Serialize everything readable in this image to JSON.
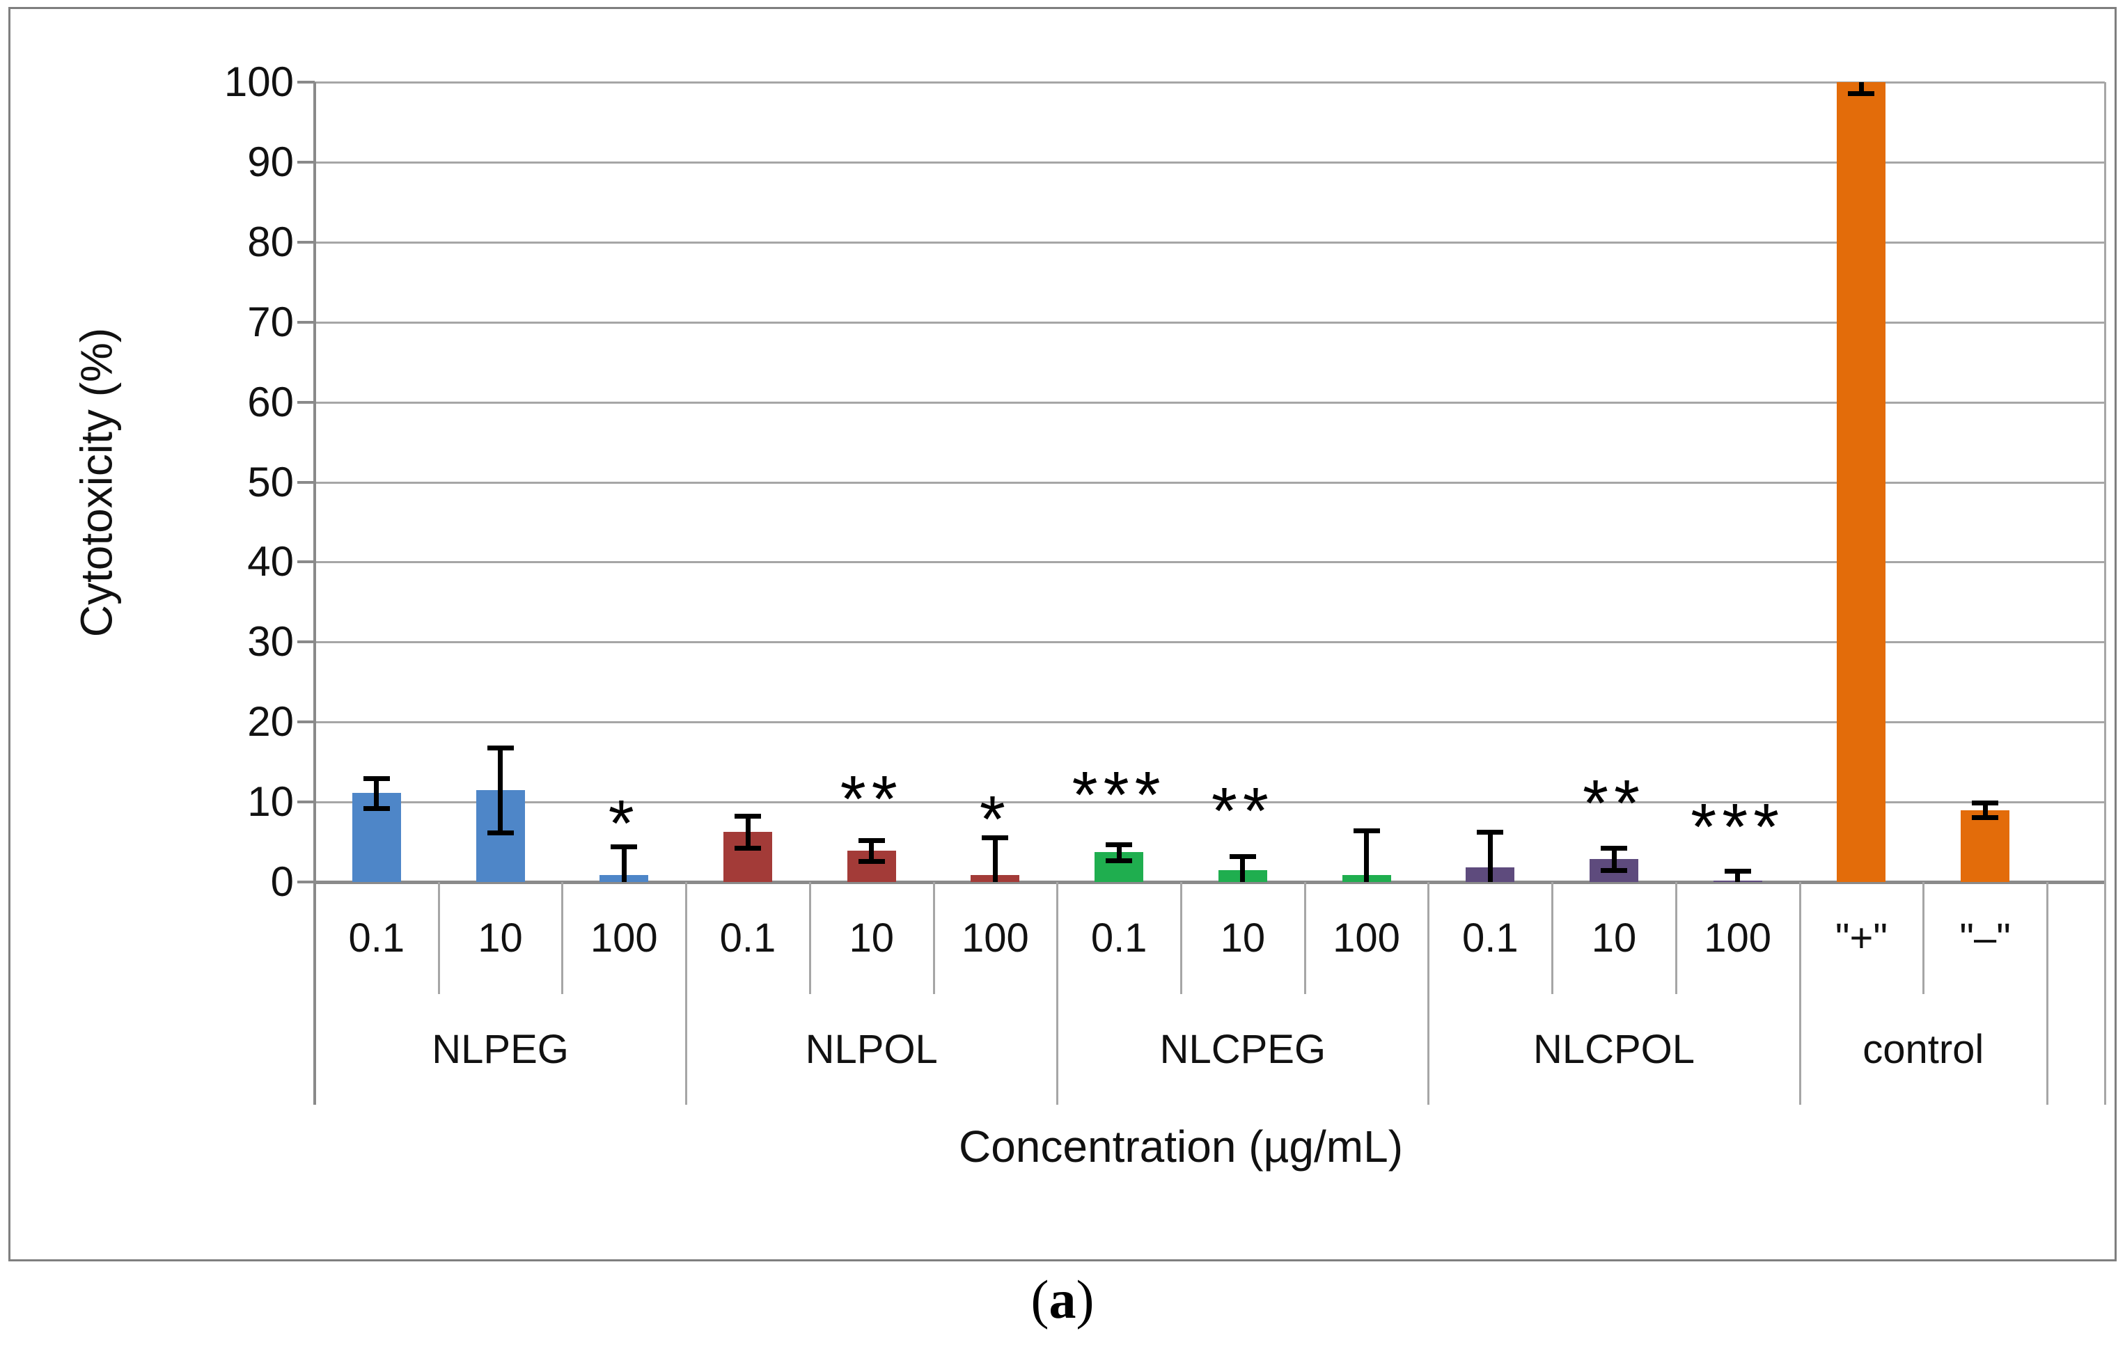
{
  "figure": {
    "caption": {
      "open": "(",
      "letter": "a",
      "close": ")"
    }
  },
  "chart_data": {
    "type": "bar",
    "title": "",
    "xlabel": "Concentration (µg/mL)",
    "ylabel": "Cytotoxicity (%)",
    "ylim": [
      0,
      100
    ],
    "yticks": [
      0,
      10,
      20,
      30,
      40,
      50,
      60,
      70,
      80,
      90,
      100
    ],
    "grid": true,
    "legend": "none",
    "colors": {
      "grid": "#a6a6a6",
      "axis": "#8a8a8a",
      "figure_border": "#7f7f7f",
      "error_bar": "#000000",
      "text": "#111111"
    },
    "significance_note": "asterisks mark statistical significance above bars",
    "groups": [
      {
        "name": "NLPEG",
        "color": "#4e86c8",
        "bars": [
          {
            "label": "0.1",
            "value": 11.1,
            "err": 1.9,
            "sig": "",
            "sig_y": 0
          },
          {
            "label": "10",
            "value": 11.5,
            "err": 5.3,
            "sig": "",
            "sig_y": 0
          },
          {
            "label": "100",
            "value": 0.9,
            "err": 3.5,
            "sig": "*",
            "sig_y": 9
          }
        ]
      },
      {
        "name": "NLPOL",
        "color": "#a33b38",
        "bars": [
          {
            "label": "0.1",
            "value": 6.3,
            "err": 2.0,
            "sig": "",
            "sig_y": 0
          },
          {
            "label": "10",
            "value": 3.9,
            "err": 1.3,
            "sig": "**",
            "sig_y": 12
          },
          {
            "label": "100",
            "value": 0.9,
            "err": 4.7,
            "sig": "*",
            "sig_y": 9.5
          }
        ]
      },
      {
        "name": "NLCPEG",
        "color": "#1fae4f",
        "bars": [
          {
            "label": "0.1",
            "value": 3.7,
            "err": 1.0,
            "sig": "***",
            "sig_y": 12.5
          },
          {
            "label": "10",
            "value": 1.5,
            "err": 1.7,
            "sig": "**",
            "sig_y": 10.5
          },
          {
            "label": "100",
            "value": 0.9,
            "err": 5.5,
            "sig": "",
            "sig_y": 0
          }
        ]
      },
      {
        "name": "NLCPOL",
        "color": "#5e4b7d",
        "bars": [
          {
            "label": "0.1",
            "value": 1.8,
            "err": 4.5,
            "sig": "",
            "sig_y": 0
          },
          {
            "label": "10",
            "value": 2.9,
            "err": 1.4,
            "sig": "**",
            "sig_y": 11.5
          },
          {
            "label": "100",
            "value": 0.15,
            "err": 1.2,
            "sig": "***",
            "sig_y": 8.5
          }
        ]
      },
      {
        "name": "control",
        "color": "#e36c0a",
        "bars": [
          {
            "label": "\"+\"",
            "value": 100,
            "err": 1.4,
            "sig": "",
            "sig_y": 0
          },
          {
            "label": "\"–\"",
            "value": 9.0,
            "err": 0.9,
            "sig": "",
            "sig_y": 0
          }
        ]
      }
    ]
  }
}
